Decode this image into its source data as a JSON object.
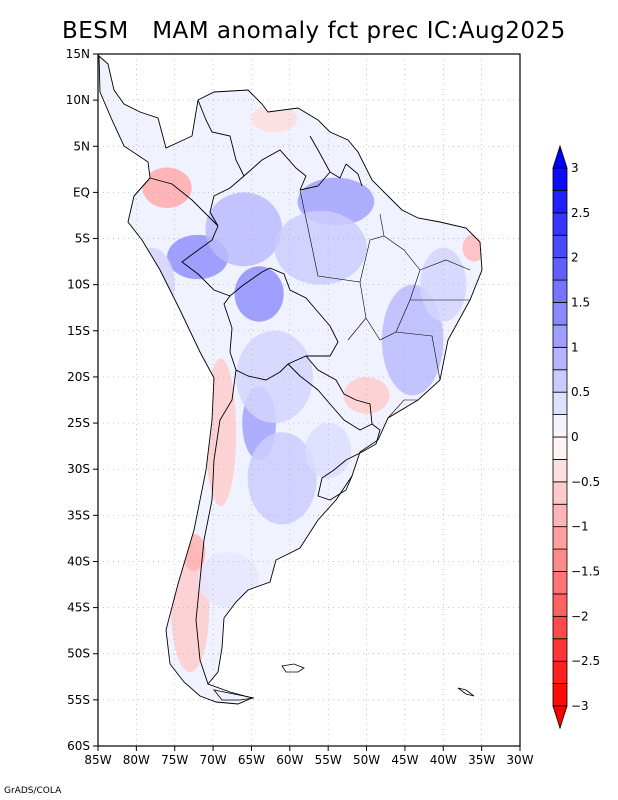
{
  "title": "BESM   MAM anomaly fct prec IC:Aug2025",
  "footer": "GrADS/COLA",
  "map": {
    "lon_range": [
      -85,
      -30
    ],
    "lat_range": [
      -60,
      15
    ],
    "x_ticks": [
      {
        "lon": -85,
        "label": "85W"
      },
      {
        "lon": -80,
        "label": "80W"
      },
      {
        "lon": -75,
        "label": "75W"
      },
      {
        "lon": -70,
        "label": "70W"
      },
      {
        "lon": -65,
        "label": "65W"
      },
      {
        "lon": -60,
        "label": "60W"
      },
      {
        "lon": -55,
        "label": "55W"
      },
      {
        "lon": -50,
        "label": "50W"
      },
      {
        "lon": -45,
        "label": "45W"
      },
      {
        "lon": -40,
        "label": "40W"
      },
      {
        "lon": -35,
        "label": "35W"
      },
      {
        "lon": -30,
        "label": "30W"
      }
    ],
    "y_ticks": [
      {
        "lat": 15,
        "label": "15N"
      },
      {
        "lat": 10,
        "label": "10N"
      },
      {
        "lat": 5,
        "label": "5N"
      },
      {
        "lat": 0,
        "label": "EQ"
      },
      {
        "lat": -5,
        "label": "5S"
      },
      {
        "lat": -10,
        "label": "10S"
      },
      {
        "lat": -15,
        "label": "15S"
      },
      {
        "lat": -20,
        "label": "20S"
      },
      {
        "lat": -25,
        "label": "25S"
      },
      {
        "lat": -30,
        "label": "30S"
      },
      {
        "lat": -35,
        "label": "35S"
      },
      {
        "lat": -40,
        "label": "40S"
      },
      {
        "lat": -45,
        "label": "45S"
      },
      {
        "lat": -50,
        "label": "50S"
      },
      {
        "lat": -55,
        "label": "55S"
      },
      {
        "lat": -60,
        "label": "60S"
      }
    ],
    "grid_lines": "dotted",
    "anomaly_regions": [
      {
        "lon": -76,
        "lat": 0.5,
        "rlon": 3.2,
        "rlat": 2.2,
        "value": -1.0
      },
      {
        "lon": -72,
        "lat": -7,
        "rlon": 4,
        "rlat": 2.4,
        "value": 1.3
      },
      {
        "lon": -64,
        "lat": -11,
        "rlon": 3.2,
        "rlat": 3,
        "value": 1.3
      },
      {
        "lon": -66,
        "lat": -4,
        "rlon": 5,
        "rlat": 4,
        "value": 0.8
      },
      {
        "lon": -54,
        "lat": -1,
        "rlon": 5,
        "rlat": 2.6,
        "value": 1.1
      },
      {
        "lon": -56,
        "lat": -6,
        "rlon": 6,
        "rlat": 4,
        "value": 0.6
      },
      {
        "lon": -44,
        "lat": -16,
        "rlon": 4,
        "rlat": 6,
        "value": 0.8
      },
      {
        "lon": -40,
        "lat": -10,
        "rlon": 3,
        "rlat": 4,
        "value": 0.5
      },
      {
        "lon": -64,
        "lat": -25,
        "rlon": 2.2,
        "rlat": 4,
        "value": 1.1
      },
      {
        "lon": -61,
        "lat": -31,
        "rlon": 4.5,
        "rlat": 5,
        "value": 0.6
      },
      {
        "lon": -62,
        "lat": -20,
        "rlon": 5,
        "rlat": 5,
        "value": 0.5
      },
      {
        "lon": -78,
        "lat": -10,
        "rlon": 3,
        "rlat": 4,
        "value": 0.5
      },
      {
        "lon": -69,
        "lat": -26,
        "rlon": 2,
        "rlat": 8,
        "value": -0.6
      },
      {
        "lon": -73,
        "lat": -45,
        "rlon": 2.5,
        "rlat": 7,
        "value": -0.6
      },
      {
        "lon": -72.5,
        "lat": -39,
        "rlon": 1.5,
        "rlat": 2,
        "value": -0.9
      },
      {
        "lon": -36,
        "lat": -6,
        "rlon": 1.5,
        "rlat": 1.5,
        "value": -0.8
      },
      {
        "lon": -50,
        "lat": -22,
        "rlon": 3,
        "rlat": 2,
        "value": -0.6
      },
      {
        "lon": -62,
        "lat": 8,
        "rlon": 3,
        "rlat": 1.5,
        "value": -0.4
      },
      {
        "lon": -68,
        "lat": -42,
        "rlon": 4,
        "rlat": 3,
        "value": 0.3
      },
      {
        "lon": -55,
        "lat": -28,
        "rlon": 3,
        "rlat": 3,
        "value": 0.4
      }
    ]
  },
  "colorbar": {
    "levels": [
      -3,
      -2.75,
      -2.5,
      -2.25,
      -2,
      -1.75,
      -1.5,
      -1.25,
      -1,
      -0.75,
      -0.5,
      -0.25,
      0,
      0.25,
      0.5,
      0.75,
      1,
      1.25,
      1.5,
      1.75,
      2,
      2.25,
      2.5,
      2.75,
      3
    ],
    "labels": [
      {
        "value": 3,
        "text": "3"
      },
      {
        "value": 2.5,
        "text": "2.5"
      },
      {
        "value": 2,
        "text": "2"
      },
      {
        "value": 1.5,
        "text": "1.5"
      },
      {
        "value": 1,
        "text": "1"
      },
      {
        "value": 0.5,
        "text": "0.5"
      },
      {
        "value": 0,
        "text": "0"
      },
      {
        "value": -0.5,
        "text": "−0.5"
      },
      {
        "value": -1,
        "text": "−1"
      },
      {
        "value": -1.5,
        "text": "−1.5"
      },
      {
        "value": -2,
        "text": "−2"
      },
      {
        "value": -2.5,
        "text": "−2.5"
      },
      {
        "value": -3,
        "text": "−3"
      }
    ],
    "colors": {
      "positive_max": "#0000ff",
      "negative_max": "#ff0000",
      "zero": "#ffffff"
    }
  }
}
